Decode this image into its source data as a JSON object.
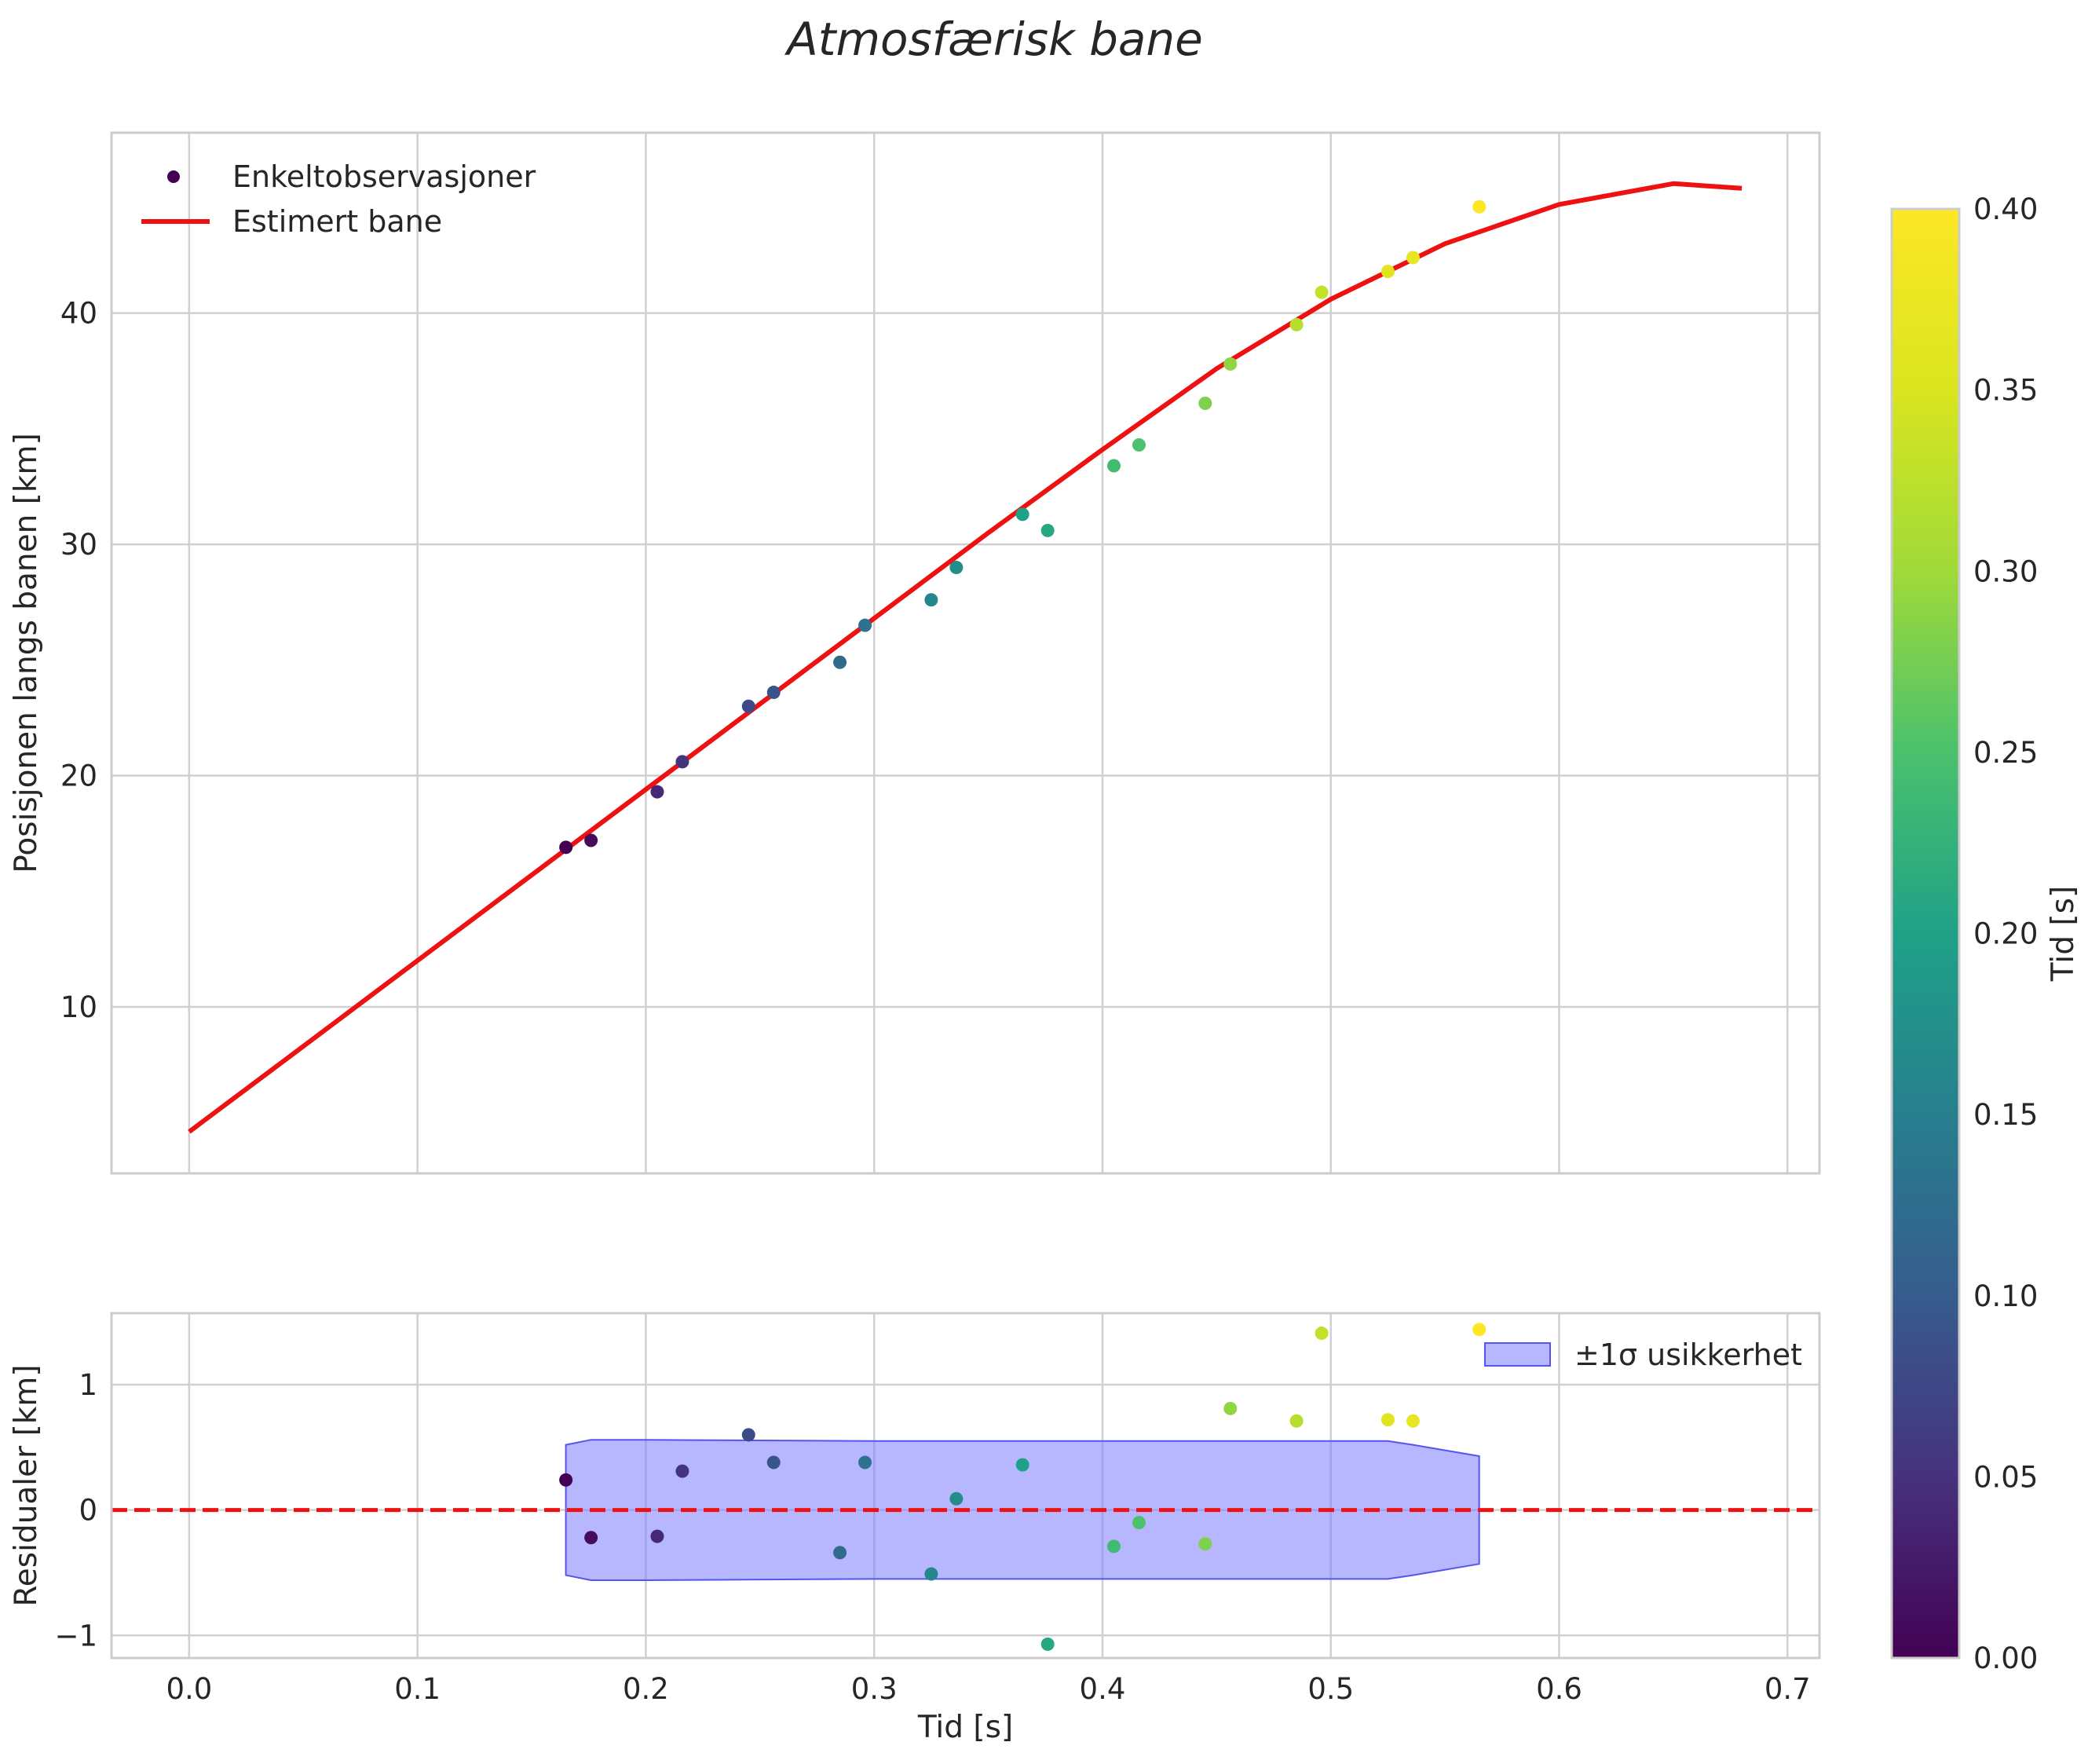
{
  "title": "Atmosfærisk bane",
  "chart_data": [
    {
      "type": "scatter",
      "panel": "main",
      "ylabel": "Posisjonen langs banen [km]",
      "xlim": [
        -0.034,
        0.714
      ],
      "ylim": [
        2.8,
        47.8
      ],
      "xticks": [
        0.0,
        0.1,
        0.2,
        0.3,
        0.4,
        0.5,
        0.6,
        0.7
      ],
      "yticks": [
        10,
        20,
        30,
        40
      ],
      "grid": true,
      "legend_position": "top-left",
      "legend": [
        "Enkeltobservasjoner",
        "Estimert bane"
      ],
      "series": [
        {
          "name": "Enkeltobservasjoner",
          "kind": "scatter",
          "colored_by": "Tid [s]",
          "x": [
            0.165,
            0.176,
            0.205,
            0.216,
            0.245,
            0.256,
            0.285,
            0.296,
            0.325,
            0.336,
            0.365,
            0.376,
            0.405,
            0.416,
            0.445,
            0.456,
            0.485,
            0.496,
            0.525,
            0.536,
            0.565
          ],
          "y": [
            16.9,
            17.2,
            19.3,
            20.6,
            23.0,
            23.6,
            24.9,
            26.5,
            27.6,
            29.0,
            31.3,
            30.6,
            33.4,
            34.3,
            36.1,
            37.8,
            39.5,
            40.9,
            41.8,
            42.4,
            44.6
          ],
          "c": [
            0.0,
            0.011,
            0.04,
            0.051,
            0.08,
            0.091,
            0.12,
            0.131,
            0.16,
            0.171,
            0.2,
            0.211,
            0.24,
            0.251,
            0.28,
            0.291,
            0.32,
            0.331,
            0.36,
            0.371,
            0.4
          ]
        },
        {
          "name": "Estimert bane",
          "kind": "line",
          "color": "#ee1111",
          "x": [
            0.0,
            0.05,
            0.1,
            0.15,
            0.2,
            0.25,
            0.3,
            0.35,
            0.4,
            0.45,
            0.5,
            0.55,
            0.6,
            0.65,
            0.68
          ],
          "y": [
            4.6,
            8.3,
            12.0,
            15.7,
            19.4,
            23.1,
            26.8,
            30.5,
            34.1,
            37.6,
            40.6,
            43.0,
            44.7,
            45.6,
            45.4
          ]
        }
      ]
    },
    {
      "type": "scatter",
      "panel": "residuals",
      "xlabel": "Tid [s]",
      "ylabel": "Residualer [km]",
      "xlim": [
        -0.034,
        0.714
      ],
      "ylim": [
        -1.18,
        1.57
      ],
      "xticks": [
        0.0,
        0.1,
        0.2,
        0.3,
        0.4,
        0.5,
        0.6,
        0.7
      ],
      "xtick_labels": [
        "0.0",
        "0.1",
        "0.2",
        "0.3",
        "0.4",
        "0.5",
        "0.6",
        "0.7"
      ],
      "yticks": [
        -1,
        0,
        1
      ],
      "ytick_labels": [
        "−1",
        "0",
        "1"
      ],
      "grid": true,
      "legend_position": "top-right",
      "legend": [
        "±1σ usikkerhet"
      ],
      "series": [
        {
          "name": "residualer",
          "kind": "scatter",
          "colored_by": "Tid [s]",
          "x": [
            0.165,
            0.176,
            0.205,
            0.216,
            0.245,
            0.256,
            0.285,
            0.296,
            0.325,
            0.336,
            0.365,
            0.376,
            0.405,
            0.416,
            0.445,
            0.456,
            0.485,
            0.496,
            0.525,
            0.536,
            0.565
          ],
          "y": [
            0.24,
            -0.22,
            -0.21,
            0.31,
            0.6,
            0.38,
            -0.34,
            0.38,
            -0.51,
            0.09,
            0.36,
            -1.07,
            -0.29,
            -0.1,
            -0.27,
            0.81,
            0.71,
            1.41,
            0.72,
            0.71,
            1.44
          ],
          "c": [
            0.0,
            0.011,
            0.04,
            0.051,
            0.08,
            0.091,
            0.12,
            0.131,
            0.16,
            0.171,
            0.2,
            0.211,
            0.24,
            0.251,
            0.28,
            0.291,
            0.32,
            0.331,
            0.36,
            0.371,
            0.4
          ]
        },
        {
          "name": "±1σ usikkerhet",
          "kind": "band",
          "color": "#7b7bff",
          "x": [
            0.165,
            0.176,
            0.2,
            0.3,
            0.4,
            0.5,
            0.525,
            0.536,
            0.565
          ],
          "upper": [
            0.52,
            0.56,
            0.56,
            0.55,
            0.55,
            0.55,
            0.55,
            0.52,
            0.43
          ],
          "lower": [
            -0.52,
            -0.56,
            -0.56,
            -0.55,
            -0.55,
            -0.55,
            -0.55,
            -0.52,
            -0.43
          ]
        },
        {
          "name": "nulllinje",
          "kind": "hline",
          "y": 0,
          "color": "#ee1111",
          "style": "dashed"
        }
      ]
    },
    {
      "type": "colorbar",
      "label": "Tid [s]",
      "colormap": "viridis",
      "range": [
        0.0,
        0.4
      ],
      "ticks": [
        0.0,
        0.05,
        0.1,
        0.15,
        0.2,
        0.25,
        0.3,
        0.35,
        0.4
      ],
      "tick_labels": [
        "0.00",
        "0.05",
        "0.10",
        "0.15",
        "0.20",
        "0.25",
        "0.30",
        "0.35",
        "0.40"
      ]
    }
  ]
}
